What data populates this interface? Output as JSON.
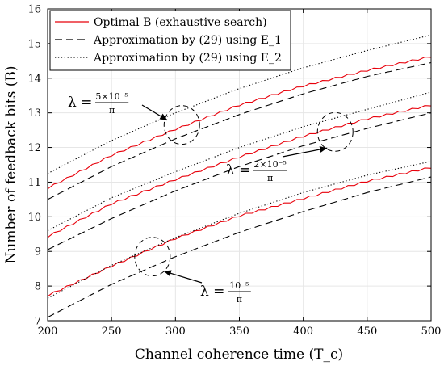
{
  "chart_data": {
    "type": "line",
    "xlabel": "Channel coherence time (T_c)",
    "ylabel": "Number of feedback bits (B)",
    "xlim": [
      200,
      500
    ],
    "ylim": [
      7,
      16
    ],
    "xticks": [
      200,
      250,
      300,
      350,
      400,
      450,
      500
    ],
    "yticks": [
      7,
      8,
      9,
      10,
      11,
      12,
      13,
      14,
      15,
      16
    ],
    "grid": true,
    "legend_position": "top-left",
    "legend": [
      {
        "label": "Optimal B (exhaustive search)",
        "style": "solid",
        "color": "#e8000b"
      },
      {
        "label": "Approximation by (29) using E_1",
        "style": "dashed",
        "color": "#000000"
      },
      {
        "label": "Approximation by (29) using E_2",
        "style": "dotted",
        "color": "#000000"
      }
    ],
    "groups": [
      {
        "lambda_label": "λ = 5×10⁻⁵/π",
        "lambda": 1.59e-05,
        "series": [
          {
            "style": "solid",
            "x": [
              200,
              250,
              300,
              350,
              400,
              450,
              500
            ],
            "y": [
              10.8,
              11.75,
              12.5,
              13.2,
              13.75,
              14.2,
              14.6
            ]
          },
          {
            "style": "dashed",
            "x": [
              200,
              250,
              300,
              350,
              400,
              450,
              500
            ],
            "y": [
              10.5,
              11.45,
              12.25,
              12.95,
              13.55,
              14.05,
              14.45
            ]
          },
          {
            "style": "dotted",
            "x": [
              200,
              250,
              300,
              350,
              400,
              450,
              500
            ],
            "y": [
              11.25,
              12.2,
              13.0,
              13.7,
              14.3,
              14.8,
              15.25
            ]
          }
        ]
      },
      {
        "lambda_label": "λ = 2×10⁻⁵/π",
        "lambda": 6.37e-06,
        "series": [
          {
            "style": "solid",
            "x": [
              200,
              250,
              300,
              350,
              400,
              450,
              500
            ],
            "y": [
              9.4,
              10.35,
              11.05,
              11.7,
              12.3,
              12.8,
              13.2
            ]
          },
          {
            "style": "dashed",
            "x": [
              200,
              250,
              300,
              350,
              400,
              450,
              500
            ],
            "y": [
              9.05,
              9.95,
              10.75,
              11.45,
              12.05,
              12.55,
              13.0
            ]
          },
          {
            "style": "dotted",
            "x": [
              200,
              250,
              300,
              350,
              400,
              450,
              500
            ],
            "y": [
              9.6,
              10.55,
              11.3,
              12.0,
              12.6,
              13.1,
              13.6
            ]
          }
        ]
      },
      {
        "lambda_label": "λ = 10⁻⁵/π",
        "lambda": 3.18e-06,
        "series": [
          {
            "style": "solid",
            "x": [
              200,
              250,
              300,
              350,
              400,
              450,
              500
            ],
            "y": [
              7.7,
              8.55,
              9.35,
              10.0,
              10.5,
              11.0,
              11.4
            ]
          },
          {
            "style": "dashed",
            "x": [
              200,
              250,
              300,
              350,
              400,
              450,
              500
            ],
            "y": [
              7.1,
              8.05,
              8.85,
              9.55,
              10.15,
              10.7,
              11.15
            ]
          },
          {
            "style": "dotted",
            "x": [
              200,
              250,
              300,
              350,
              400,
              450,
              500
            ],
            "y": [
              7.65,
              8.6,
              9.4,
              10.1,
              10.7,
              11.2,
              11.6
            ]
          }
        ]
      }
    ],
    "annotations": [
      {
        "text": "λ = 5×10⁻⁵/π",
        "circle_center": [
          305,
          12.65
        ],
        "label_anchor": [
          84,
          132
        ]
      },
      {
        "text": "λ = 2×10⁻⁵/π",
        "circle_center": [
          425,
          12.45
        ],
        "label_anchor": [
          280,
          216
        ]
      },
      {
        "text": "λ = 10⁻⁵/π",
        "circle_center": [
          282,
          8.85
        ],
        "label_anchor": [
          248,
          366
        ]
      }
    ]
  }
}
